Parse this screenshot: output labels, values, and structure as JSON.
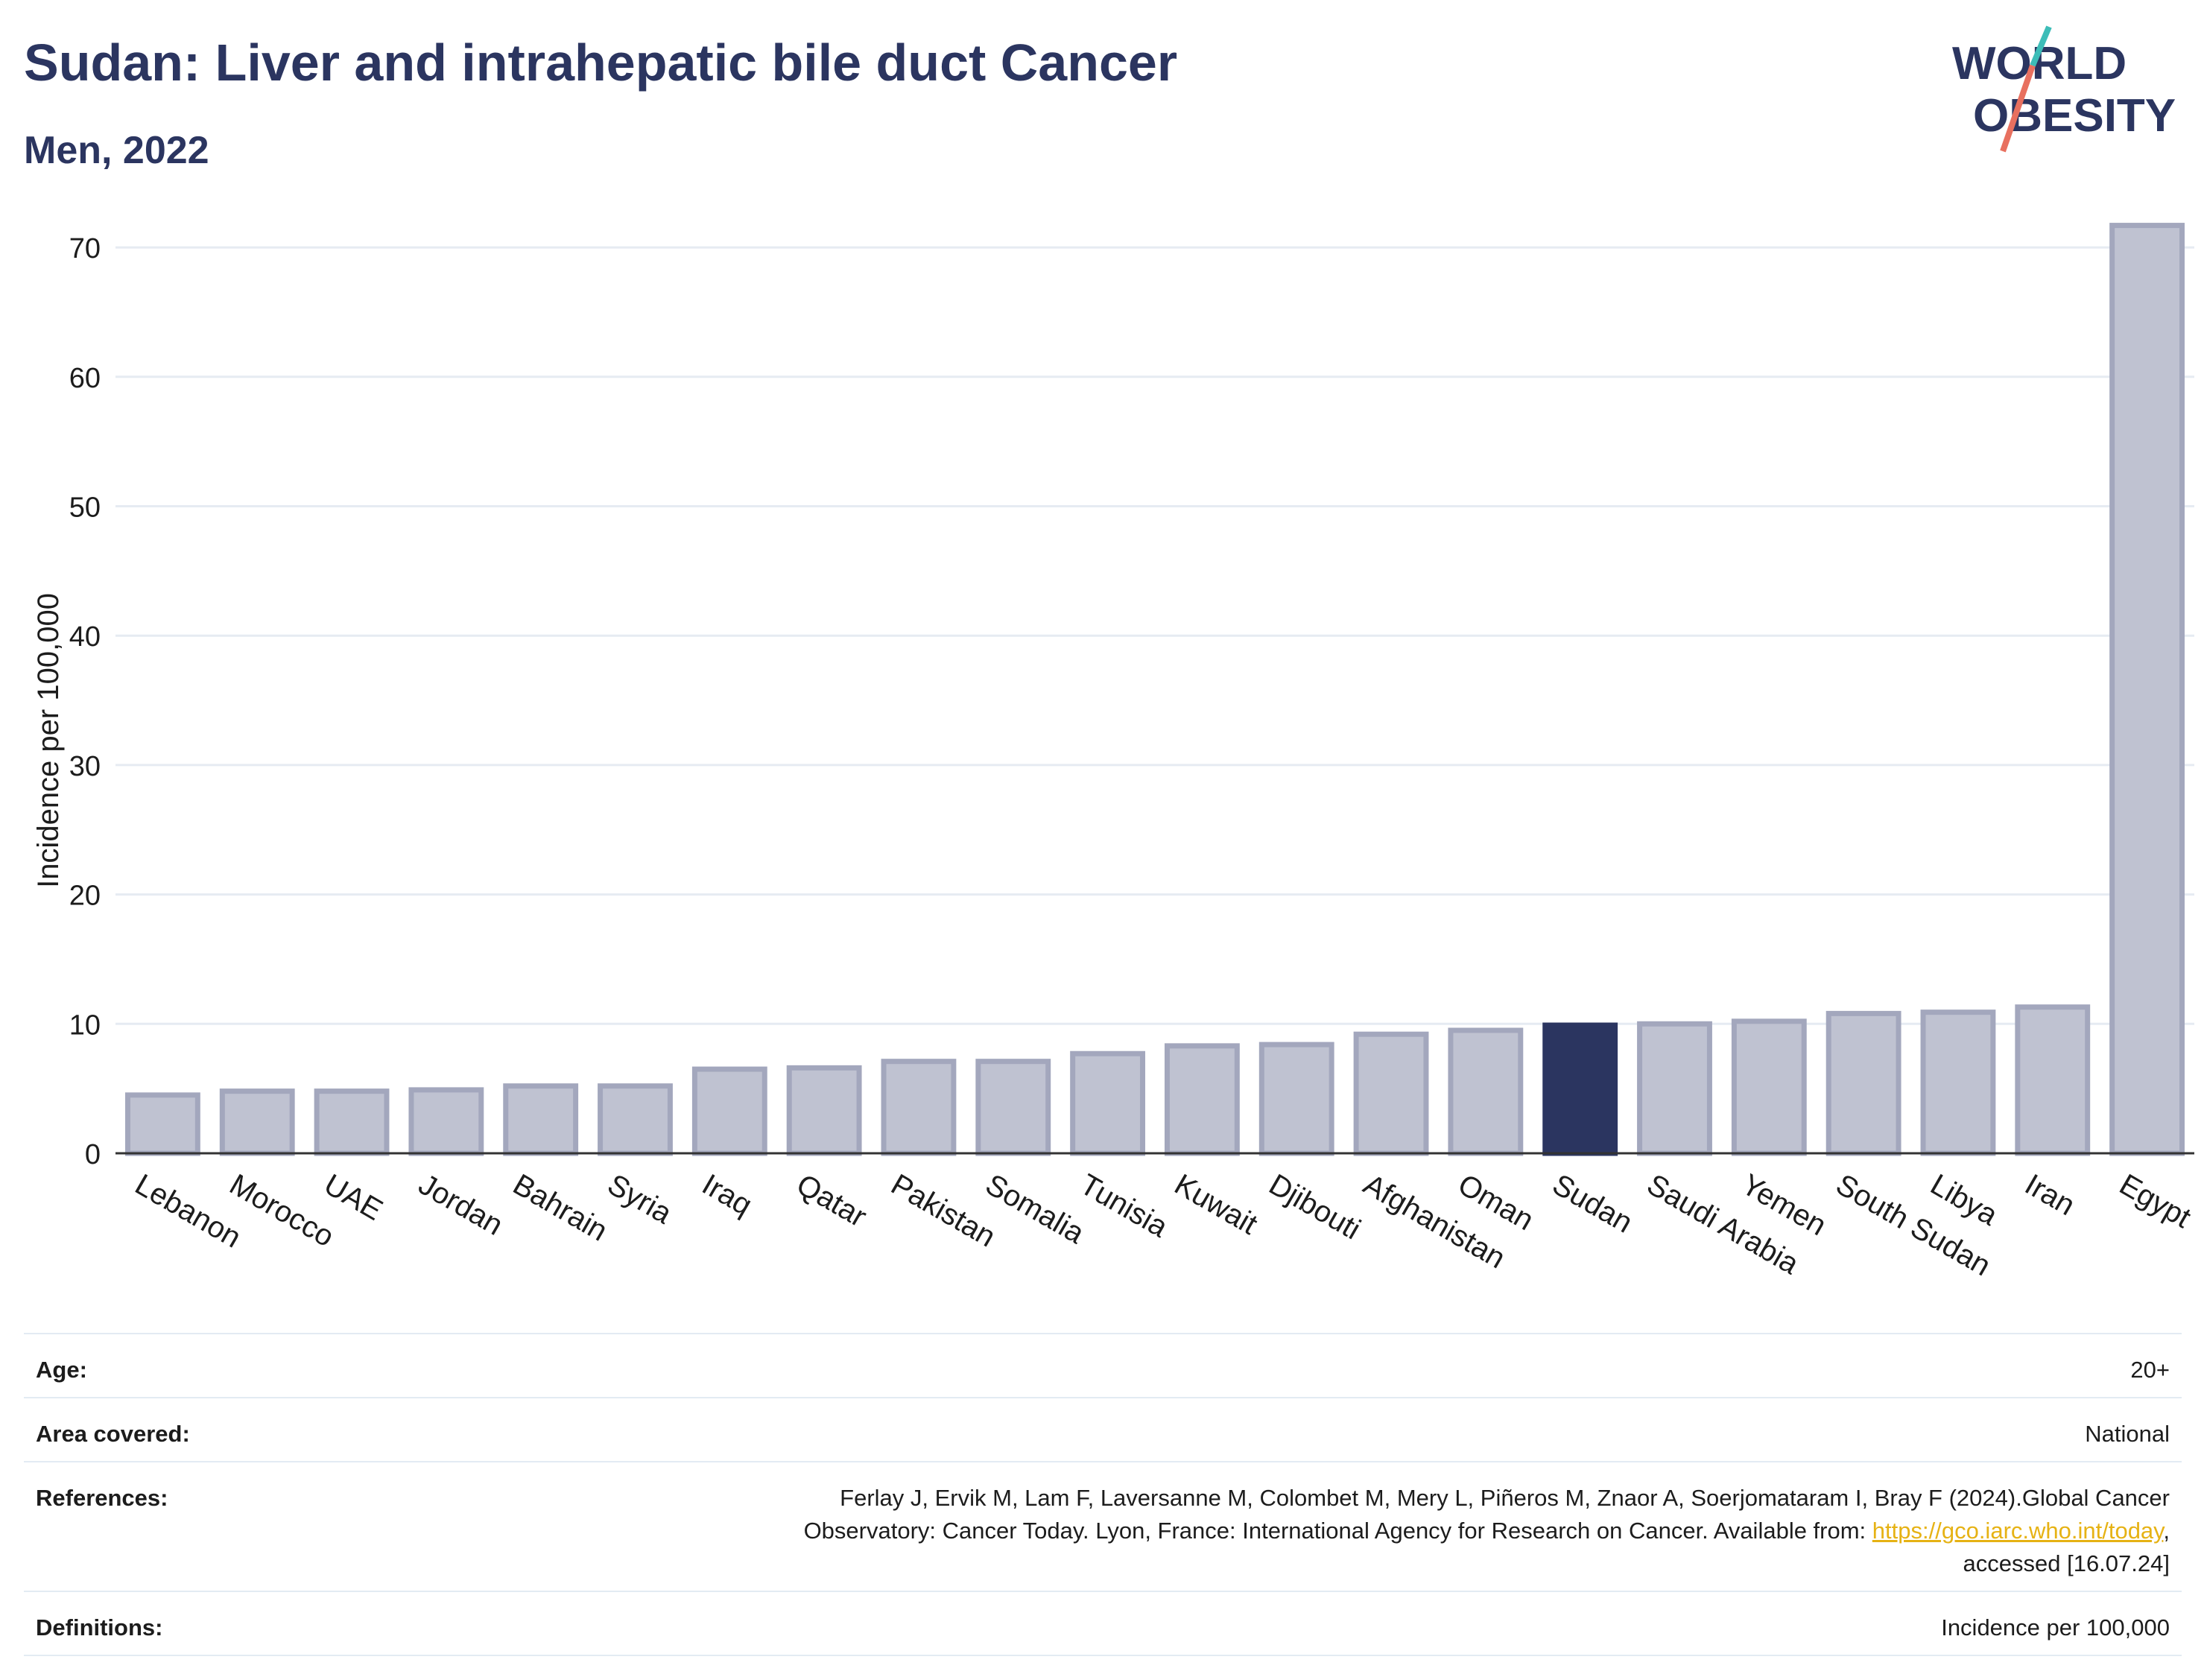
{
  "header": {
    "title": "Sudan: Liver and intrahepatic bile duct Cancer",
    "subtitle": "Men, 2022"
  },
  "logo": {
    "line1": "WORLD",
    "line2": "OBESITY",
    "accent_teal": "#3dbdb8",
    "accent_coral": "#e8705f"
  },
  "colors": {
    "bar_default": "#bfc2d1",
    "bar_outline": "#a3a7bd",
    "bar_highlight": "#2b3560",
    "text": "#2b3560",
    "gridline": "#e6ebf2",
    "link": "#e6b214"
  },
  "chart_data": {
    "type": "bar",
    "title": "Sudan: Liver and intrahepatic bile duct Cancer",
    "subtitle": "Men, 2022",
    "xlabel": "",
    "ylabel": "Incidence per 100,000",
    "ylim": [
      0,
      73
    ],
    "yticks": [
      0,
      10,
      20,
      30,
      40,
      50,
      60,
      70
    ],
    "grid": true,
    "highlight": "Sudan",
    "categories": [
      "Lebanon",
      "Morocco",
      "UAE",
      "Jordan",
      "Bahrain",
      "Syria",
      "Iraq",
      "Qatar",
      "Pakistan",
      "Somalia",
      "Tunisia",
      "Kuwait",
      "Djibouti",
      "Afghanistan",
      "Oman",
      "Sudan",
      "Saudi Arabia",
      "Yemen",
      "South Sudan",
      "Libya",
      "Iran",
      "Egypt"
    ],
    "values": [
      4.5,
      4.8,
      4.8,
      4.9,
      5.2,
      5.2,
      6.5,
      6.6,
      7.1,
      7.1,
      7.7,
      8.3,
      8.4,
      9.2,
      9.5,
      9.9,
      10.0,
      10.2,
      10.8,
      10.9,
      11.3,
      71.7
    ]
  },
  "meta": {
    "age_label": "Age:",
    "age_value": "20+",
    "area_label": "Area covered:",
    "area_value": "National",
    "references_label": "References:",
    "references_line1": "Ferlay J, Ervik M, Lam F, Laversanne M, Colombet M, Mery L, Piñeros M, Znaor A, Soerjomataram I, Bray F (2024).Global Cancer",
    "references_line2_pre": "Observatory: Cancer Today. Lyon, France: International Agency for Research on Cancer. Available from: ",
    "references_link": "https://gco.iarc.who.int/today",
    "references_line2_post": ",",
    "references_line3": "accessed [16.07.24]",
    "definitions_label": "Definitions:",
    "definitions_value": "Incidence per 100,000"
  }
}
